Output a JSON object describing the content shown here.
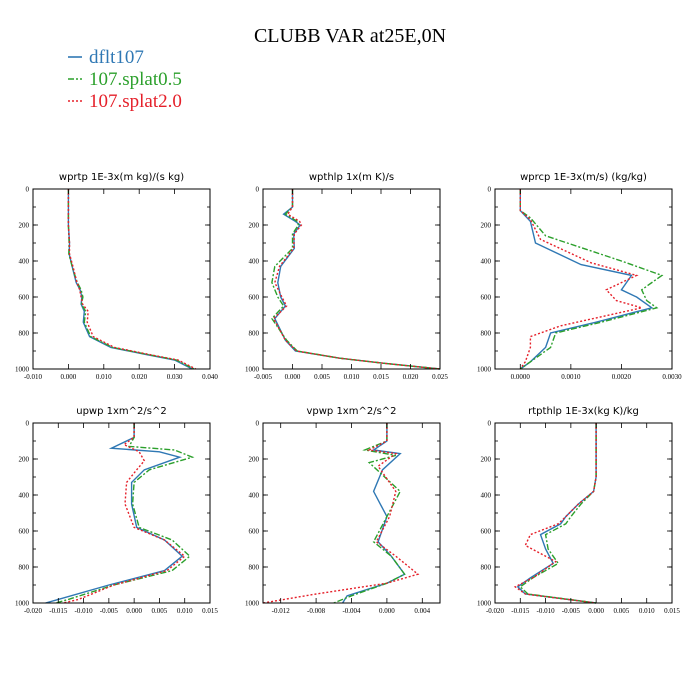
{
  "figure": {
    "title": "CLUBB VAR at25E,0N"
  },
  "colors": {
    "dflt107": "#2f78b4",
    "splat05": "#2ca02c",
    "splat20": "#e5202a"
  },
  "legend": [
    {
      "label": "dflt107",
      "color": "#2f78b4",
      "dash": ""
    },
    {
      "label": "107.splat0.5",
      "color": "#2ca02c",
      "dash": "6,2,2,2"
    },
    {
      "label": "107.splat2.0",
      "color": "#e5202a",
      "dash": "2,2"
    }
  ],
  "chart_data": [
    {
      "type": "line",
      "title": "wprtp  1E-3x(m kg)/(s kg)",
      "xlim": [
        -0.01,
        0.04
      ],
      "xticks": [
        "-0.010",
        "0.000",
        "0.010",
        "0.020",
        "0.030",
        "0.040"
      ],
      "ylim": [
        0,
        1000
      ],
      "yticks": [
        "0",
        "200",
        "400",
        "600",
        "800",
        "1000"
      ],
      "y_inverted": true,
      "series": [
        {
          "name": "dflt107",
          "x": [
            0,
            0,
            0.0003,
            0.0002,
            0.0012,
            0.0022,
            0.0033,
            0.0038,
            0.0036,
            0.0045,
            0.0042,
            0.006,
            0.012,
            0.022,
            0.03,
            0.035
          ],
          "y": [
            0,
            200,
            300,
            360,
            440,
            520,
            560,
            600,
            640,
            680,
            740,
            820,
            880,
            920,
            950,
            1000
          ]
        },
        {
          "name": "107.splat0.5",
          "x": [
            0,
            0,
            0.0002,
            0.0001,
            0.0012,
            0.0025,
            0.0036,
            0.0041,
            0.0037,
            0.0049,
            0.0045,
            0.0063,
            0.0125,
            0.0225,
            0.0305,
            0.0355
          ],
          "y": [
            0,
            200,
            300,
            360,
            440,
            520,
            560,
            600,
            640,
            680,
            740,
            820,
            880,
            920,
            950,
            1000
          ]
        },
        {
          "name": "107.splat2.0",
          "x": [
            0,
            0,
            0.0003,
            0.0003,
            0.0014,
            0.0024,
            0.0032,
            0.0036,
            0.004,
            0.0056,
            0.0053,
            0.007,
            0.013,
            0.023,
            0.031,
            0.036
          ],
          "y": [
            0,
            200,
            300,
            360,
            440,
            520,
            560,
            600,
            640,
            680,
            740,
            820,
            880,
            920,
            950,
            1000
          ]
        }
      ]
    },
    {
      "type": "line",
      "title": "wpthlp  1x(m K)/s",
      "xlim": [
        -0.005,
        0.025
      ],
      "xticks": [
        "-0.005",
        "0.000",
        "0.005",
        "0.010",
        "0.015",
        "0.020",
        "0.025"
      ],
      "ylim": [
        0,
        1000
      ],
      "yticks": [
        "0",
        "200",
        "400",
        "600",
        "800",
        "1000"
      ],
      "y_inverted": true,
      "series": [
        {
          "name": "dflt107",
          "x": [
            0,
            0,
            -0.0015,
            0.0005,
            0.0013,
            0.0002,
            0.0003,
            -0.002,
            -0.0025,
            -0.002,
            -0.0012,
            -0.003,
            -0.0012,
            0.0005,
            0.008,
            0.016,
            0.025
          ],
          "y": [
            0,
            100,
            140,
            180,
            200,
            250,
            330,
            430,
            520,
            600,
            650,
            720,
            840,
            900,
            940,
            970,
            1000
          ]
        },
        {
          "name": "107.splat0.5",
          "x": [
            0,
            0,
            -0.0012,
            0.0008,
            0.001,
            0.0,
            0.0,
            -0.003,
            -0.0035,
            -0.0025,
            -0.0015,
            -0.0035,
            -0.001,
            0.0008,
            0.008,
            0.016,
            0.025
          ],
          "y": [
            0,
            100,
            140,
            180,
            200,
            250,
            330,
            430,
            520,
            600,
            650,
            720,
            840,
            900,
            940,
            970,
            1000
          ]
        },
        {
          "name": "107.splat2.0",
          "x": [
            0,
            0,
            -0.0008,
            0.0012,
            0.0015,
            0.0003,
            0.0002,
            -0.0022,
            -0.003,
            -0.0018,
            -0.001,
            -0.0032,
            -0.0012,
            0.0007,
            0.008,
            0.016,
            0.025
          ],
          "y": [
            0,
            100,
            140,
            180,
            200,
            250,
            330,
            430,
            520,
            600,
            650,
            720,
            840,
            900,
            940,
            970,
            1000
          ]
        }
      ]
    },
    {
      "type": "line",
      "title": "wprcp  1E-3x(m/s) (kg/kg)",
      "xlim": [
        -0.0005,
        0.003
      ],
      "xticks": [
        "0.0000",
        "0.0010",
        "0.0020",
        "0.0030"
      ],
      "ylim": [
        0,
        1000
      ],
      "yticks": [
        "0",
        "200",
        "400",
        "600",
        "800",
        "1000"
      ],
      "y_inverted": true,
      "series": [
        {
          "name": "dflt107",
          "x": [
            0,
            0,
            0.0002,
            0.0003,
            0.0012,
            0.0022,
            0.002,
            0.0023,
            0.0026,
            0.0015,
            0.0006,
            0.0005,
            0.0002,
            0.0
          ],
          "y": [
            0,
            120,
            180,
            300,
            420,
            480,
            560,
            600,
            660,
            740,
            800,
            880,
            960,
            1000
          ]
        },
        {
          "name": "107.splat0.5",
          "x": [
            0,
            0,
            0.0002,
            0.0005,
            0.002,
            0.0028,
            0.0024,
            0.0025,
            0.0027,
            0.0016,
            0.0007,
            0.0006,
            0.0002,
            0.0
          ],
          "y": [
            0,
            120,
            160,
            260,
            400,
            480,
            560,
            620,
            660,
            740,
            800,
            880,
            960,
            1000
          ]
        },
        {
          "name": "107.splat2.0",
          "x": [
            0,
            0,
            0.0002,
            0.0004,
            0.0014,
            0.0023,
            0.0017,
            0.0019,
            0.0024,
            0.0008,
            0.0002,
            0.0002,
            0.0001,
            0.0
          ],
          "y": [
            0,
            120,
            170,
            280,
            410,
            480,
            560,
            620,
            660,
            760,
            820,
            880,
            960,
            1000
          ]
        }
      ]
    },
    {
      "type": "line",
      "title": "upwp  1xm^2/s^2",
      "xlim": [
        -0.02,
        0.015
      ],
      "xticks": [
        "-0.020",
        "-0.015",
        "-0.010",
        "-0.005",
        "0.000",
        "0.005",
        "0.010",
        "0.015"
      ],
      "ylim": [
        0,
        1000
      ],
      "yticks": [
        "0",
        "200",
        "400",
        "600",
        "800",
        "1000"
      ],
      "y_inverted": true,
      "series": [
        {
          "name": "dflt107",
          "x": [
            0,
            0,
            -0.0045,
            0.005,
            0.009,
            0.002,
            -0.0005,
            -0.0005,
            0.0005,
            0.006,
            0.0095,
            0.006,
            -0.005,
            -0.015,
            -0.0175
          ],
          "y": [
            0,
            80,
            140,
            160,
            190,
            260,
            330,
            450,
            580,
            650,
            740,
            820,
            900,
            980,
            1000
          ]
        },
        {
          "name": "107.splat0.5",
          "x": [
            0,
            0,
            -0.001,
            0.008,
            0.0115,
            0.003,
            0.0,
            -0.0003,
            0.001,
            0.0075,
            0.011,
            0.0075,
            -0.004,
            -0.013,
            -0.0155
          ],
          "y": [
            0,
            80,
            130,
            150,
            190,
            260,
            330,
            450,
            580,
            650,
            740,
            820,
            900,
            980,
            1000
          ]
        },
        {
          "name": "107.splat2.0",
          "x": [
            0,
            0,
            -0.002,
            0.001,
            0.002,
            0.0005,
            -0.0015,
            -0.0018,
            0.0,
            0.006,
            0.01,
            0.0065,
            -0.004,
            -0.011,
            -0.014
          ],
          "y": [
            0,
            80,
            120,
            160,
            210,
            260,
            330,
            450,
            580,
            650,
            740,
            820,
            900,
            980,
            1000
          ]
        }
      ]
    },
    {
      "type": "line",
      "title": "vpwp  1xm^2/s^2",
      "xlim": [
        -0.014,
        0.006
      ],
      "xticks": [
        "-0.012",
        "-0.008",
        "-0.004",
        "0.000",
        "0.004"
      ],
      "ylim": [
        0,
        1000
      ],
      "yticks": [
        "0",
        "200",
        "400",
        "600",
        "800",
        "1000"
      ],
      "y_inverted": true,
      "series": [
        {
          "name": "dflt107",
          "x": [
            0,
            0,
            -0.0015,
            0.0015,
            -0.0005,
            -0.0015,
            0.0,
            -0.001,
            0.0005,
            0.002,
            0.0,
            -0.0045,
            -0.005
          ],
          "y": [
            0,
            100,
            150,
            170,
            260,
            380,
            520,
            660,
            740,
            840,
            890,
            960,
            1000
          ]
        },
        {
          "name": "107.splat0.5",
          "x": [
            0,
            0,
            -0.0025,
            0.001,
            -0.002,
            0.0015,
            0.0,
            -0.0015,
            0.0005,
            0.002,
            0.0,
            -0.004,
            -0.006
          ],
          "y": [
            0,
            100,
            150,
            180,
            220,
            380,
            520,
            660,
            740,
            840,
            890,
            960,
            1000
          ]
        },
        {
          "name": "107.splat2.0",
          "x": [
            0,
            0,
            -0.002,
            0.001,
            -0.001,
            0.001,
            0.0003,
            -0.0012,
            0.001,
            0.0035,
            0.0,
            -0.008,
            -0.014
          ],
          "y": [
            0,
            100,
            150,
            170,
            240,
            380,
            520,
            660,
            740,
            840,
            890,
            950,
            1000
          ]
        }
      ]
    },
    {
      "type": "line",
      "title": "rtpthlp  1E-3x(kg K)/kg",
      "xlim": [
        -0.02,
        0.015
      ],
      "xticks": [
        "-0.020",
        "-0.015",
        "-0.010",
        "-0.005",
        "0.000",
        "0.005",
        "0.010",
        "0.015"
      ],
      "ylim": [
        0,
        1000
      ],
      "yticks": [
        "0",
        "200",
        "400",
        "600",
        "800",
        "1000"
      ],
      "y_inverted": true,
      "series": [
        {
          "name": "dflt107",
          "x": [
            0,
            0,
            -0.0005,
            -0.0035,
            -0.006,
            -0.007,
            -0.011,
            -0.01,
            -0.0085,
            -0.013,
            -0.0155,
            -0.014,
            0.0
          ],
          "y": [
            0,
            300,
            380,
            450,
            520,
            560,
            620,
            700,
            780,
            860,
            910,
            950,
            1000
          ]
        },
        {
          "name": "107.splat0.5",
          "x": [
            0,
            0,
            -0.0005,
            -0.003,
            -0.005,
            -0.006,
            -0.01,
            -0.0095,
            -0.0075,
            -0.0125,
            -0.015,
            -0.0135,
            0.0
          ],
          "y": [
            0,
            300,
            380,
            450,
            520,
            560,
            620,
            700,
            780,
            860,
            910,
            950,
            1000
          ]
        },
        {
          "name": "107.splat2.0",
          "x": [
            0,
            0,
            -0.0005,
            -0.0035,
            -0.006,
            -0.0075,
            -0.013,
            -0.014,
            -0.008,
            -0.0125,
            -0.016,
            -0.014,
            0.0
          ],
          "y": [
            0,
            300,
            380,
            450,
            520,
            560,
            620,
            680,
            770,
            860,
            910,
            950,
            1000
          ]
        }
      ]
    }
  ]
}
